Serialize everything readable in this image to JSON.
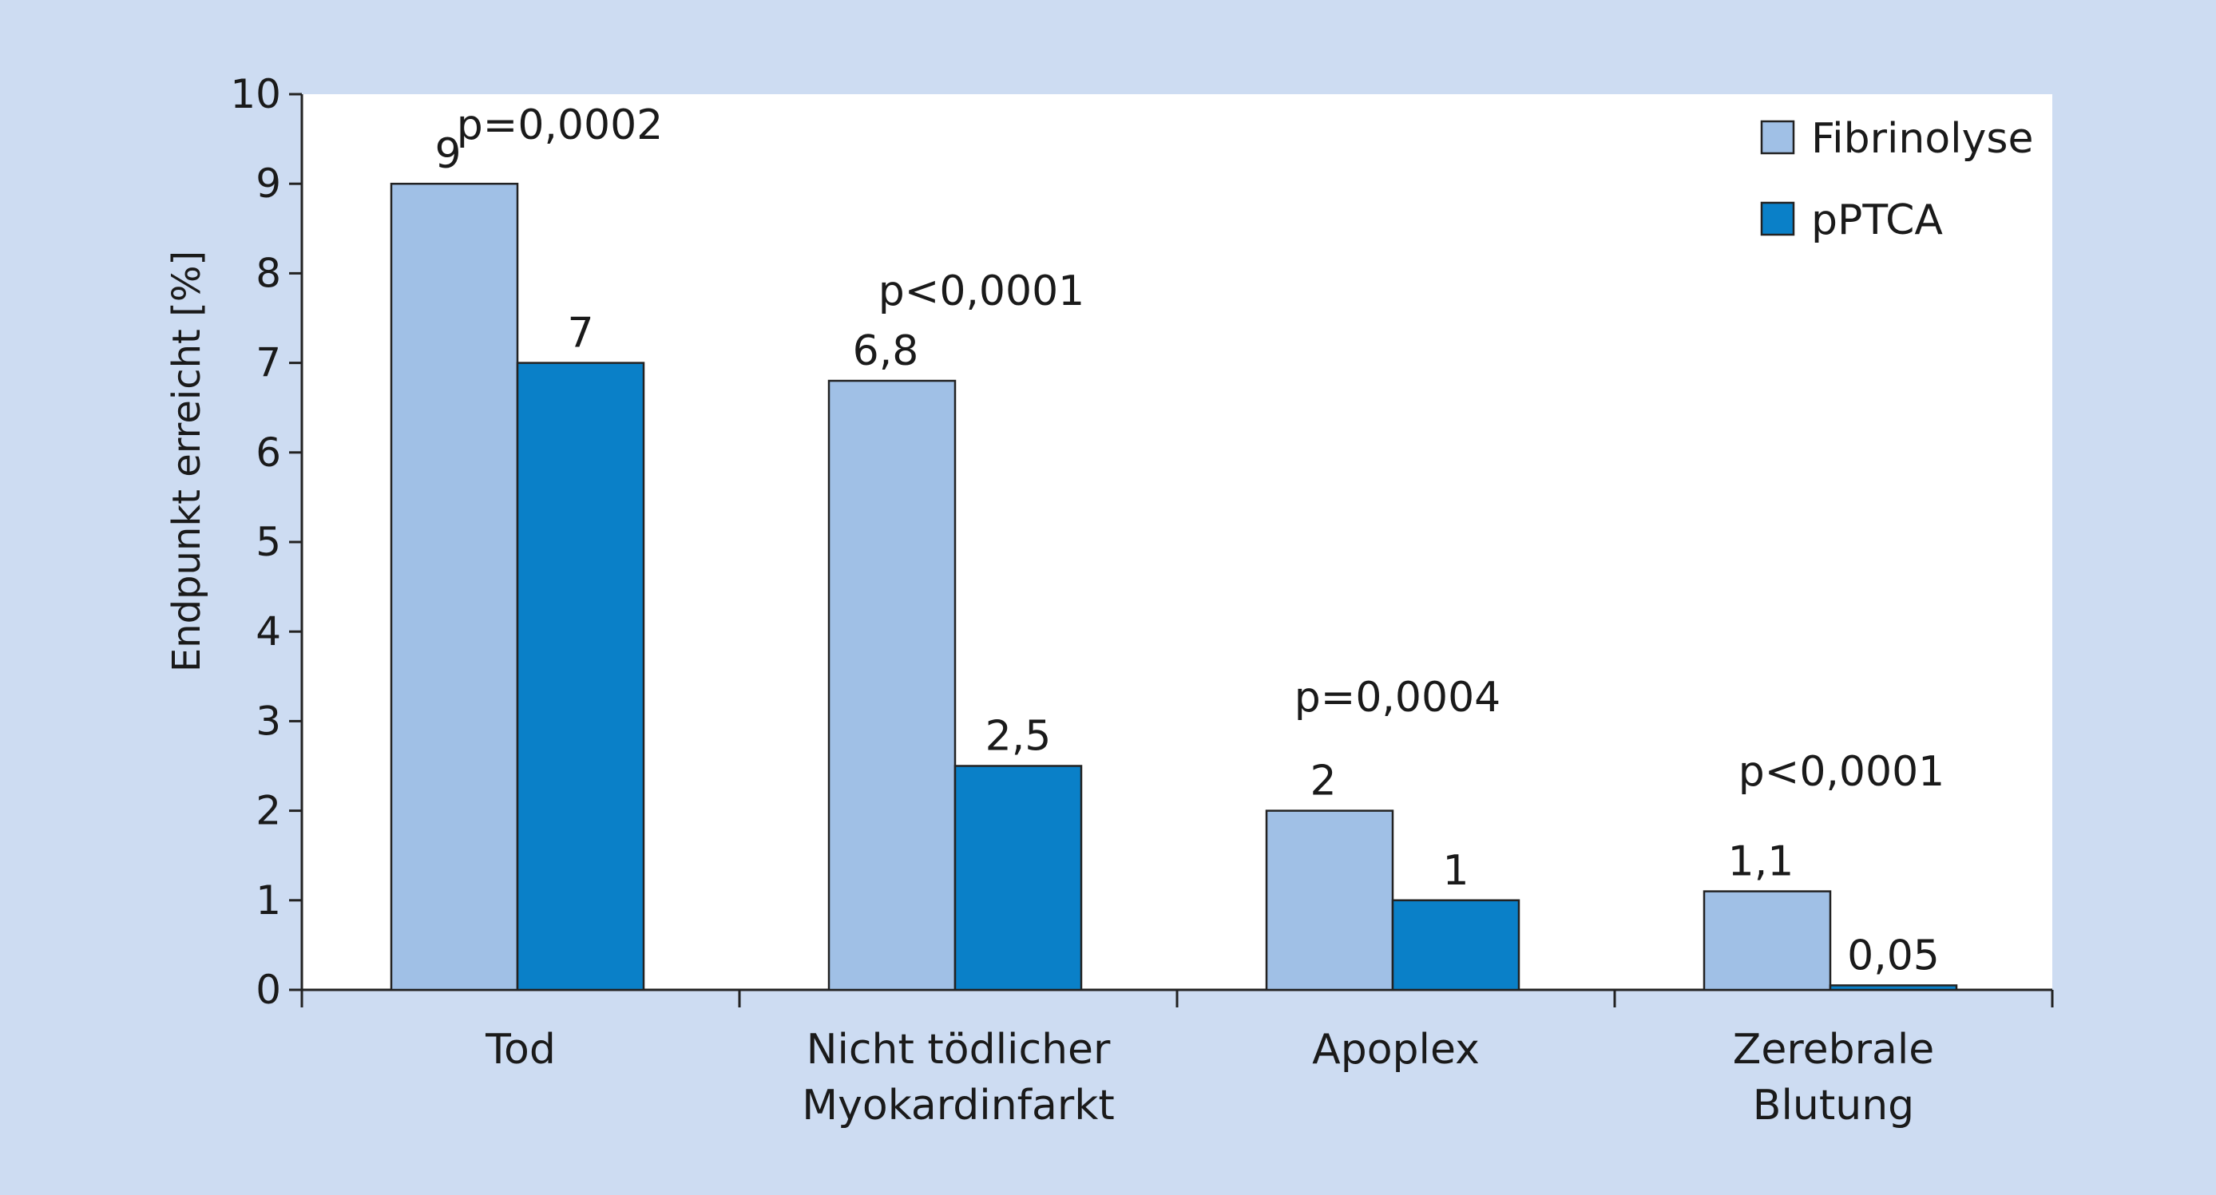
{
  "chart_data": {
    "type": "bar",
    "ylabel": "Endpunkt erreicht [%]",
    "ylim": [
      0,
      10
    ],
    "yticks": [
      "0",
      "1",
      "2",
      "3",
      "4",
      "5",
      "6",
      "7",
      "8",
      "9",
      "10"
    ],
    "categories": [
      [
        "Tod"
      ],
      [
        "Nicht tödlicher",
        "Myokardinfarkt"
      ],
      [
        "Apoplex"
      ],
      [
        "Zerebrale",
        "Blutung"
      ]
    ],
    "series": [
      {
        "name": "Fibrinolyse",
        "color": "#a0c0e6",
        "values": [
          9,
          6.8,
          2,
          1.1
        ],
        "labels": [
          "9",
          "6,8",
          "2",
          "1,1"
        ]
      },
      {
        "name": "pPTCA",
        "color": "#0a80c8",
        "values": [
          7,
          2.5,
          1,
          0.05
        ],
        "labels": [
          "7",
          "2,5",
          "1",
          "0,05"
        ]
      }
    ],
    "annotations": [
      "p=0,0002",
      "p<0,0001",
      "p=0,0004",
      "p<0,0001"
    ],
    "legend_position": "top-right",
    "grid": false,
    "plot_background": "#ffffff",
    "figure_background": "#cddcf2"
  }
}
